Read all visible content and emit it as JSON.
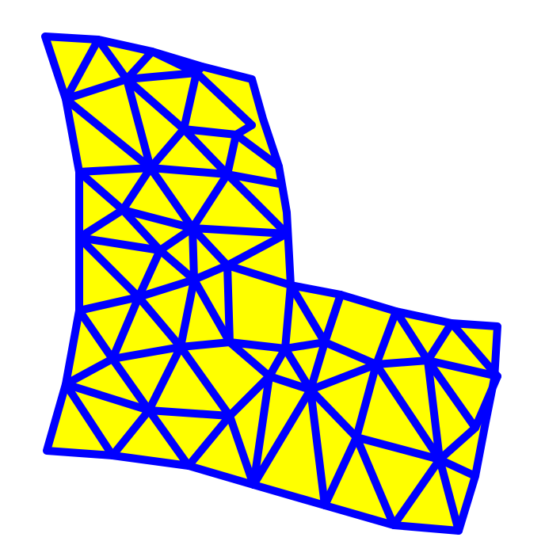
{
  "colors": {
    "background": "#ffffff",
    "fill": "#ffff00",
    "edge": "#0000ff"
  }
}
